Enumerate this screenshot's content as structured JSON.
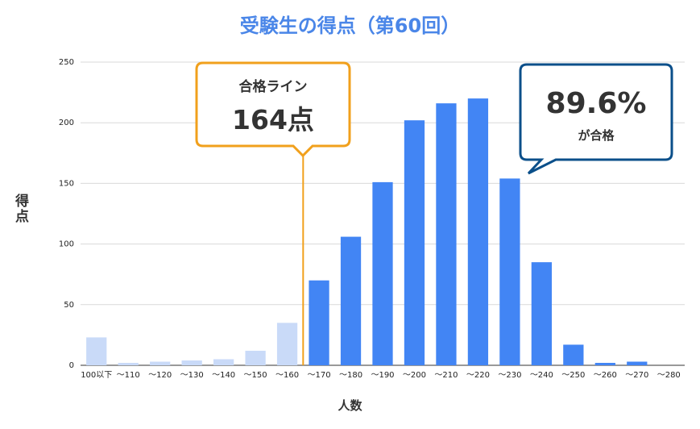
{
  "chart_data": {
    "type": "bar",
    "title": "受験生の得点（第60回）",
    "xlabel": "人数",
    "ylabel": "得点",
    "ylim": [
      0,
      250
    ],
    "yticks": [
      0,
      50,
      100,
      150,
      200,
      250
    ],
    "grid": true,
    "categories": [
      "100以下",
      "〜110",
      "〜120",
      "〜130",
      "〜140",
      "〜150",
      "〜160",
      "〜170",
      "〜180",
      "〜190",
      "〜200",
      "〜210",
      "〜220",
      "〜230",
      "〜240",
      "〜250",
      "〜260",
      "〜270",
      "〜280"
    ],
    "values": [
      23,
      2,
      3,
      4,
      5,
      12,
      35,
      70,
      106,
      151,
      202,
      216,
      220,
      154,
      85,
      17,
      2,
      3,
      0
    ],
    "below_line_count": 7,
    "colors": {
      "fail": "#c9daf8",
      "pass": "#4285f4",
      "line": "#f1a01c",
      "callout_pass": "#0b4f8a"
    },
    "annotations": {
      "pass_line": {
        "label": "合格ライン",
        "value": "164点"
      },
      "pass_rate": {
        "value": "89.6%",
        "label": "が合格"
      }
    }
  }
}
